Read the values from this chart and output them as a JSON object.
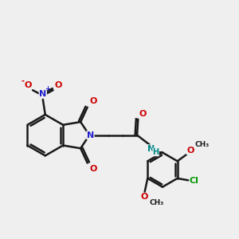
{
  "bg_color": "#efefef",
  "bond_color": "#1a1a1a",
  "bond_width": 1.8,
  "figsize": [
    3.0,
    3.0
  ],
  "dpi": 100,
  "xlim": [
    0,
    12
  ],
  "ylim": [
    0,
    12
  ]
}
